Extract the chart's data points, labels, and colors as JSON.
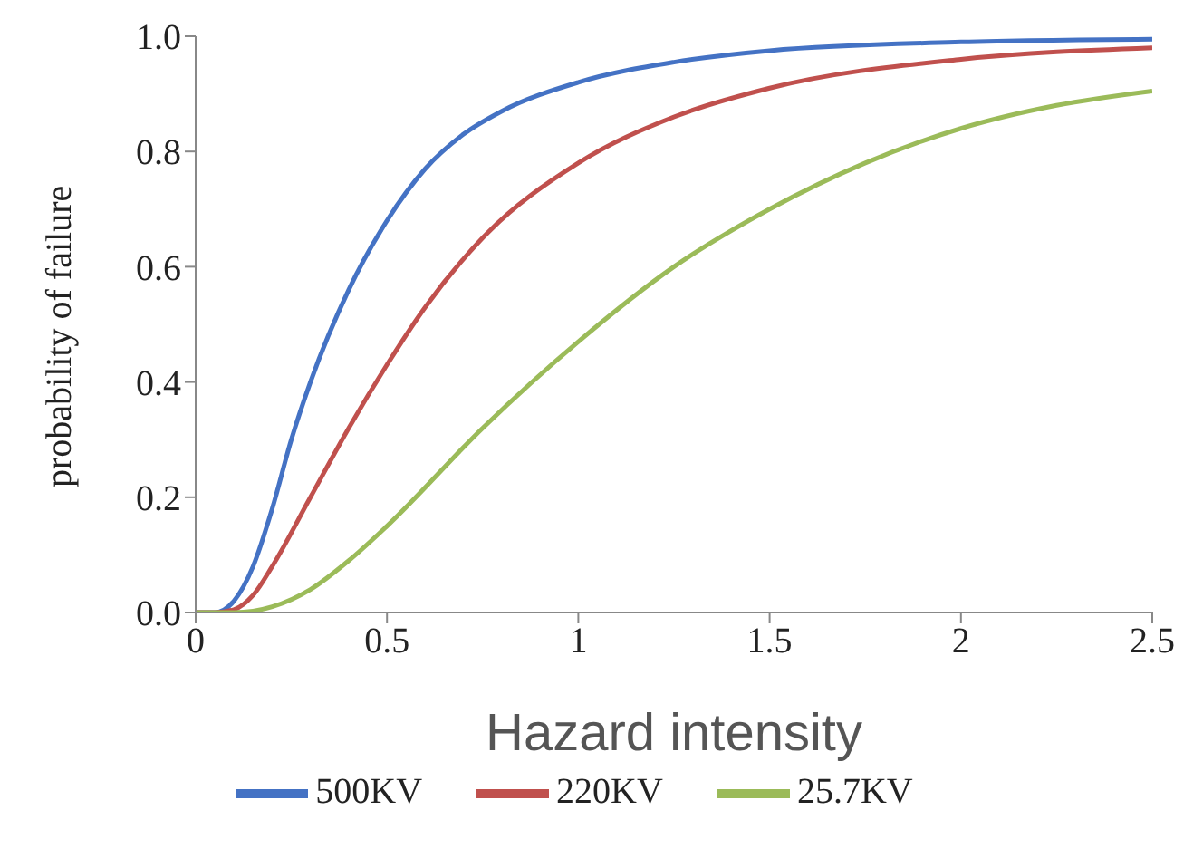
{
  "chart_data": {
    "type": "line",
    "xlabel": "Hazard intensity",
    "ylabel": "probability of failure",
    "xlim": [
      0,
      2.5
    ],
    "xticks": [
      0,
      0.5,
      1,
      1.5,
      2,
      2.5
    ],
    "ylim": [
      0,
      1
    ],
    "yticks": [
      {
        "value": 0,
        "label": "0.0"
      },
      {
        "value": 0.2,
        "label": "0.2"
      },
      {
        "value": 0.4,
        "label": "0.4"
      },
      {
        "value": 0.6,
        "label": "0.6"
      },
      {
        "value": 0.8,
        "label": "0.8"
      },
      {
        "value": 1,
        "label": "1.0"
      }
    ],
    "grid": false,
    "legend": "bottom",
    "marker": "none",
    "line_style": "solid",
    "series": [
      {
        "name": "500KV",
        "color": "#4472c4",
        "x": [
          0,
          0.05,
          0.1,
          0.15,
          0.2,
          0.25,
          0.3,
          0.4,
          0.5,
          0.6,
          0.7,
          0.8,
          1,
          1.25,
          1.5,
          2,
          2.5
        ],
        "values": [
          0,
          0,
          0.02,
          0.08,
          0.18,
          0.3,
          0.4,
          0.56,
          0.68,
          0.77,
          0.83,
          0.87,
          0.92,
          0.955,
          0.975,
          0.99,
          0.995
        ]
      },
      {
        "name": "220KV",
        "color": "#c0504d",
        "x": [
          0,
          0.05,
          0.1,
          0.15,
          0.2,
          0.3,
          0.4,
          0.5,
          0.6,
          0.75,
          1,
          1.25,
          1.5,
          2,
          2.5
        ],
        "values": [
          0,
          0,
          0.005,
          0.03,
          0.08,
          0.2,
          0.32,
          0.43,
          0.53,
          0.65,
          0.78,
          0.86,
          0.91,
          0.96,
          0.98
        ]
      },
      {
        "name": "25.7KV",
        "color": "#9bbb59",
        "x": [
          0,
          0.1,
          0.2,
          0.3,
          0.4,
          0.5,
          0.75,
          1,
          1.25,
          1.5,
          1.75,
          2,
          2.25,
          2.5
        ],
        "values": [
          0,
          0,
          0.01,
          0.04,
          0.09,
          0.15,
          0.32,
          0.47,
          0.6,
          0.7,
          0.78,
          0.84,
          0.88,
          0.905
        ]
      }
    ]
  }
}
